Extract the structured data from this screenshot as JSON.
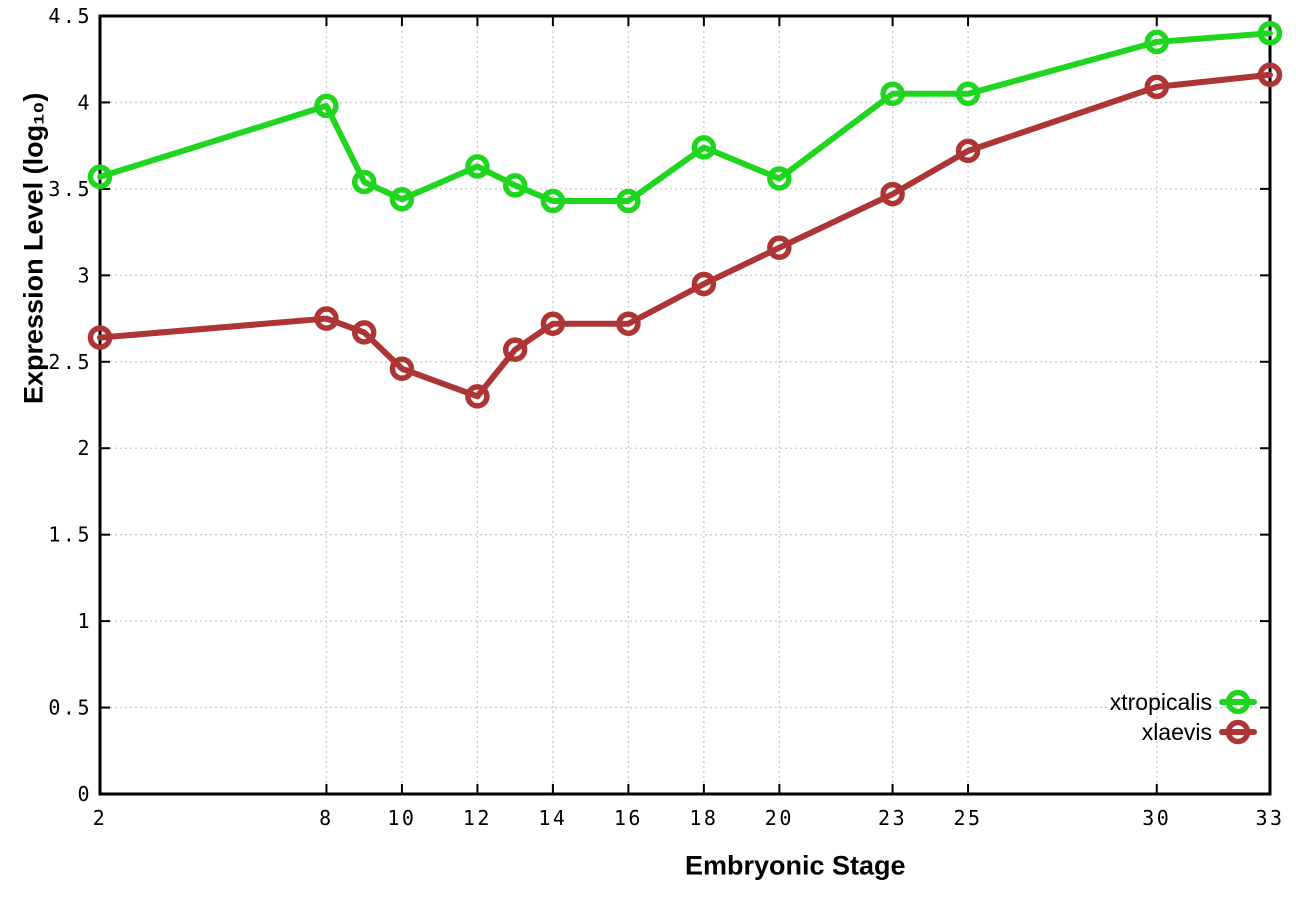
{
  "chart_data": {
    "type": "line",
    "title": "",
    "xlabel": "Embryonic Stage",
    "ylabel": "Expression Level (log₁₀)",
    "x": [
      2,
      8,
      9,
      10,
      12,
      13,
      14,
      16,
      18,
      20,
      23,
      25,
      30,
      33
    ],
    "series": [
      {
        "name": "xtropicalis",
        "color": "#20d520",
        "values": [
          3.57,
          3.98,
          3.54,
          3.44,
          3.63,
          3.52,
          3.43,
          3.43,
          3.74,
          3.56,
          4.05,
          4.05,
          4.35,
          4.4
        ]
      },
      {
        "name": "xlaevis",
        "color": "#ad3535",
        "values": [
          2.64,
          2.75,
          2.67,
          2.46,
          2.3,
          2.57,
          2.72,
          2.72,
          2.95,
          3.16,
          3.47,
          3.72,
          4.09,
          4.16
        ]
      }
    ],
    "xlim": [
      2,
      33
    ],
    "ylim": [
      0,
      4.5
    ],
    "xticks": {
      "values": [
        2,
        8,
        10,
        12,
        14,
        16,
        18,
        20,
        23,
        25,
        30,
        33
      ],
      "labels": [
        "2",
        "8",
        "10",
        "12",
        "14",
        "16",
        "18",
        "20",
        "23",
        "25",
        "30",
        "33"
      ]
    },
    "yticks": {
      "values": [
        0,
        0.5,
        1,
        1.5,
        2,
        2.5,
        3,
        3.5,
        4,
        4.5
      ],
      "labels": [
        "0",
        "0.5",
        "1",
        "1.5",
        "2",
        "2.5",
        "3",
        "3.5",
        "4",
        "4.5"
      ]
    },
    "grid": true,
    "marker": "open-circle",
    "legend": {
      "position": "bottom-right",
      "entries": [
        "xtropicalis",
        "xlaevis"
      ]
    },
    "colors": {
      "border": "#000000",
      "grid": "#c9c9c9",
      "tick_text": "#000000",
      "background": "#ffffff"
    }
  }
}
